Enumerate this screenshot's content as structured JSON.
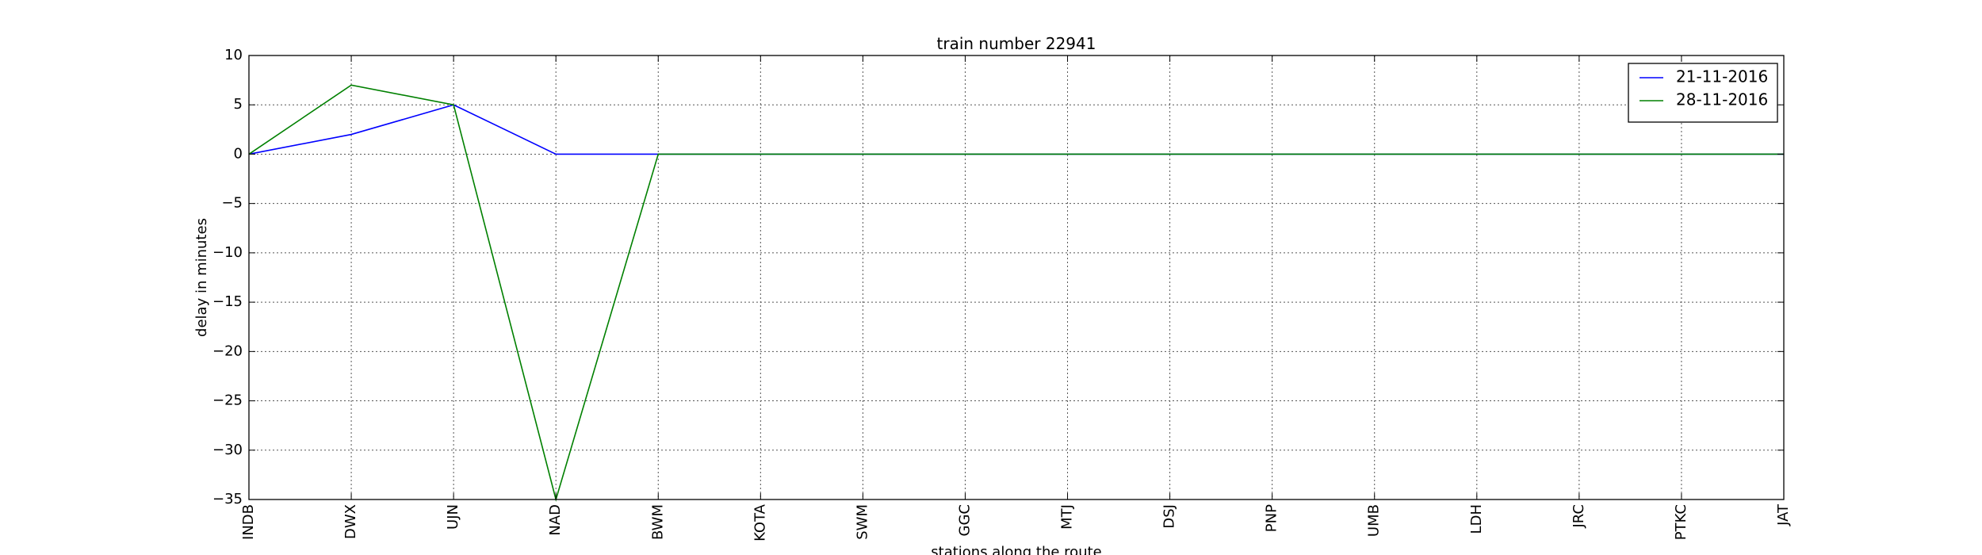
{
  "chart_data": {
    "type": "line",
    "title": "train number 22941",
    "xlabel": "stations along the route",
    "ylabel": "delay in minutes",
    "categories": [
      "INDB",
      "DWX",
      "UJN",
      "NAD",
      "BWM",
      "KOTA",
      "SWM",
      "GGC",
      "MTJ",
      "DSJ",
      "PNP",
      "UMB",
      "LDH",
      "JRC",
      "PTKC",
      "JAT"
    ],
    "ylim": [
      -35,
      10
    ],
    "yticks": [
      10,
      5,
      0,
      -5,
      -10,
      -15,
      -20,
      -25,
      -30,
      -35
    ],
    "ytick_labels": [
      "10",
      "5",
      "0",
      "−5",
      "−10",
      "−15",
      "−20",
      "−25",
      "−30",
      "−35"
    ],
    "grid": true,
    "legend_position": "top-right",
    "series": [
      {
        "name": "21-11-2016",
        "color": "#0000ff",
        "values": [
          0,
          2,
          5,
          0,
          0,
          0,
          0,
          0,
          0,
          0,
          0,
          0,
          0,
          0,
          0,
          0
        ]
      },
      {
        "name": "28-11-2016",
        "color": "#008000",
        "values": [
          0,
          7,
          5,
          -35,
          0,
          0,
          0,
          0,
          0,
          0,
          0,
          0,
          0,
          0,
          0,
          0
        ]
      }
    ]
  }
}
